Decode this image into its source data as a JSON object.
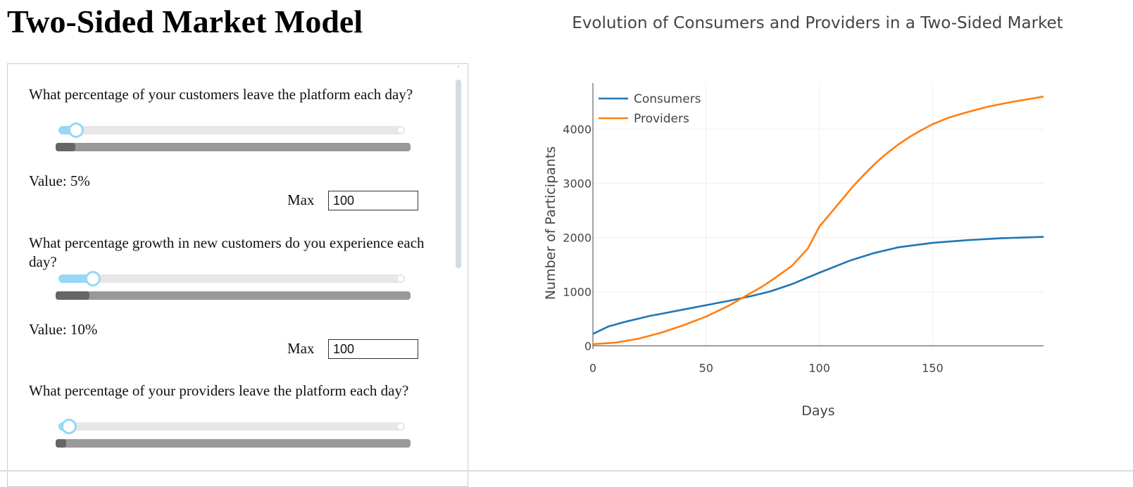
{
  "page": {
    "title": "Two-Sided Market Model"
  },
  "controls": [
    {
      "question": "What percentage of your customers leave the platform each day?",
      "value_label": "Value: 5%",
      "slider_value": 5,
      "slider_min": 0,
      "slider_max": 100,
      "range_fraction": 0.055,
      "max_label": "Max",
      "max_value": "100"
    },
    {
      "question": "What percentage growth in new customers do you experience each day?",
      "value_label": "Value: 10%",
      "slider_value": 10,
      "slider_min": 0,
      "slider_max": 100,
      "range_fraction": 0.095,
      "max_label": "Max",
      "max_value": "100"
    },
    {
      "question": "What percentage of your providers leave the platform each day?",
      "slider_value": 3,
      "slider_min": 0,
      "slider_max": 100,
      "range_fraction": 0.03
    }
  ],
  "chart_data": {
    "type": "line",
    "title": "Evolution of Consumers and Providers in a Two-Sided Market",
    "xlabel": "Days",
    "ylabel": "Number of Participants",
    "xlim": [
      0,
      199
    ],
    "ylim": [
      -60,
      4850
    ],
    "xticks": [
      0,
      50,
      100,
      150
    ],
    "yticks": [
      0,
      1000,
      2000,
      3000,
      4000
    ],
    "grid": true,
    "legend_position": "top-left",
    "series": [
      {
        "name": "Consumers",
        "color": "#1f77b4",
        "x": [
          0,
          7,
          14,
          20,
          25,
          30,
          40,
          50,
          60,
          70,
          78,
          88,
          100,
          114,
          124,
          135,
          150,
          165,
          180,
          199
        ],
        "y": [
          220,
          360,
          440,
          500,
          550,
          590,
          670,
          750,
          830,
          920,
          1000,
          1140,
          1350,
          1580,
          1710,
          1820,
          1900,
          1950,
          1985,
          2010
        ]
      },
      {
        "name": "Providers",
        "color": "#ff7f0e",
        "x": [
          0,
          10,
          20,
          30,
          40,
          50,
          60,
          70,
          75,
          80,
          88,
          95,
          100,
          105,
          110,
          115,
          120,
          125,
          130,
          135,
          140,
          145,
          150,
          157,
          165,
          175,
          185,
          199
        ],
        "y": [
          30,
          60,
          130,
          240,
          380,
          540,
          740,
          980,
          1100,
          1240,
          1480,
          1800,
          2200,
          2450,
          2700,
          2950,
          3170,
          3380,
          3560,
          3720,
          3860,
          3980,
          4090,
          4210,
          4310,
          4420,
          4500,
          4600
        ]
      }
    ]
  }
}
